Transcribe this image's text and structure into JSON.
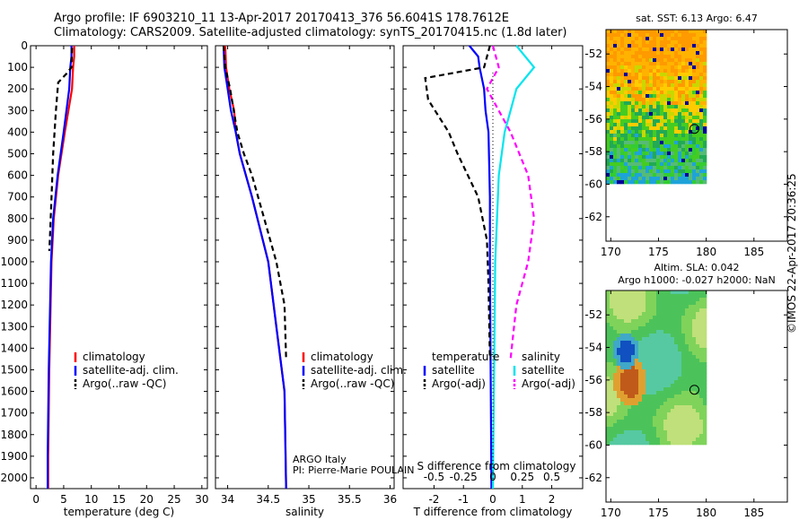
{
  "header": {
    "line1": "Argo profile: IF 6903210_11 13-Apr-2017 20170413_376 56.6041S 178.7612E",
    "line2": "Climatology: CARS2009. Satellite-adjusted climatology: synTS_20170415.nc (1.8d later)"
  },
  "credit": "©IMOS 22-Apr-2017 20:36:25",
  "colors": {
    "climatology": "#ff0000",
    "satellite": "#0000ff",
    "argo": "#000000",
    "cyan": "#00e5ee",
    "magenta": "#ff00ff"
  },
  "chart_data": [
    {
      "type": "line",
      "id": "temperature",
      "xlabel": "temperature (deg C)",
      "ylabel": "",
      "xlim": [
        -1,
        31
      ],
      "ylim": [
        2050,
        0
      ],
      "xticks": [
        0,
        5,
        10,
        15,
        20,
        25,
        30
      ],
      "yticks": [
        0,
        100,
        200,
        300,
        400,
        500,
        600,
        700,
        800,
        900,
        1000,
        1100,
        1200,
        1300,
        1400,
        1500,
        1600,
        1700,
        1800,
        1900,
        2000
      ],
      "legend": [
        "climatology",
        "satellite-adj. clim.",
        "Argo(..raw -QC)"
      ],
      "legend_placement": "center",
      "series": [
        {
          "name": "climatology",
          "color": "#ff0000",
          "dash": "none",
          "x": [
            6.9,
            6.9,
            6.7,
            6.5,
            5.2,
            4.0,
            3.2,
            2.8,
            2.4,
            2.2,
            2.2
          ],
          "y": [
            0,
            50,
            100,
            200,
            400,
            600,
            800,
            1000,
            1500,
            1900,
            2050
          ]
        },
        {
          "name": "satellite-adj. clim.",
          "color": "#0000ff",
          "dash": "none",
          "x": [
            6.4,
            6.4,
            6.2,
            6.0,
            5.0,
            3.9,
            3.1,
            2.7,
            2.3,
            2.1,
            2.1
          ],
          "y": [
            0,
            50,
            100,
            200,
            400,
            600,
            800,
            1000,
            1500,
            1900,
            2050
          ]
        },
        {
          "name": "Argo(..raw -QC)",
          "color": "#000000",
          "dash": "6,4",
          "x": [
            6.5,
            6.4,
            5.5,
            4.0,
            3.6,
            3.1,
            2.8,
            2.5,
            2.4
          ],
          "y": [
            10,
            100,
            130,
            170,
            300,
            500,
            700,
            900,
            950
          ]
        }
      ]
    },
    {
      "type": "line",
      "id": "salinity",
      "xlabel": "salinity",
      "xlim": [
        33.85,
        36.05
      ],
      "ylim": [
        2050,
        0
      ],
      "xticks": [
        34,
        34.5,
        35,
        35.5,
        36
      ],
      "xticklabels": [
        "34",
        "34.5",
        "35",
        "35.5",
        "36"
      ],
      "legend": [
        "climatology",
        "satellite-adj. clim.",
        "Argo(..raw -QC)"
      ],
      "legend_placement": "center-right",
      "annotations": [
        "ARGO Italy",
        "PI: Pierre-Marie POULAIN"
      ],
      "series": [
        {
          "name": "climatology",
          "color": "#ff0000",
          "dash": "none",
          "x": [
            33.97,
            33.98,
            34.02,
            34.08,
            34.1,
            34.15,
            34.3,
            34.5,
            34.6,
            34.7,
            34.72
          ],
          "y": [
            0,
            100,
            200,
            300,
            400,
            500,
            700,
            1000,
            1300,
            1600,
            2050
          ]
        },
        {
          "name": "satellite-adj. clim.",
          "color": "#0000ff",
          "dash": "none",
          "x": [
            33.95,
            33.96,
            34.0,
            34.04,
            34.1,
            34.15,
            34.3,
            34.5,
            34.6,
            34.7,
            34.72
          ],
          "y": [
            0,
            100,
            200,
            300,
            400,
            500,
            700,
            1000,
            1300,
            1600,
            2050
          ]
        },
        {
          "name": "Argo(..raw -QC)",
          "color": "#000000",
          "dash": "6,4",
          "x": [
            33.95,
            33.97,
            34.03,
            34.12,
            34.2,
            34.3,
            34.45,
            34.6,
            34.7,
            34.72
          ],
          "y": [
            0,
            100,
            200,
            400,
            500,
            600,
            800,
            1000,
            1200,
            1450
          ]
        }
      ]
    },
    {
      "type": "line",
      "id": "difference",
      "xlabel": "T difference from climatology",
      "xlabel_top": "S difference from climatology",
      "xticks_bottom": [
        -2,
        -1,
        0,
        1,
        2
      ],
      "xticklabels_bottom": [
        "-2",
        "-1",
        "0",
        "1",
        "2"
      ],
      "xticks_top": [
        -0.5,
        -0.25,
        0,
        0.25,
        0.5
      ],
      "xticklabels_top": [
        "-0.5",
        "-0.25",
        "0",
        "0.25",
        "0.5"
      ],
      "xlim": [
        -3.05,
        3.05
      ],
      "ylim": [
        2050,
        0
      ],
      "legend_left": {
        "title": "temperature",
        "items": [
          "satellite",
          "Argo(-adj)"
        ]
      },
      "legend_right": {
        "title": "salinity",
        "items": [
          "satellite",
          "Argo(-adj)"
        ]
      },
      "series": [
        {
          "name": "satellite",
          "group": "temperature",
          "color": "#0000ff",
          "dash": "none",
          "x": [
            -0.8,
            -0.5,
            -0.45,
            -0.3,
            -0.25,
            -0.15,
            -0.1,
            -0.1,
            -0.05
          ],
          "y": [
            0,
            50,
            100,
            200,
            300,
            400,
            700,
            1000,
            2050
          ]
        },
        {
          "name": "Argo(-adj)",
          "group": "temperature",
          "color": "#000000",
          "dash": "6,4",
          "x": [
            -0.1,
            -0.3,
            -2.3,
            -2.2,
            -1.5,
            -1.2,
            -0.5,
            -0.2,
            -0.15,
            -0.1
          ],
          "y": [
            0,
            100,
            150,
            250,
            400,
            500,
            700,
            900,
            1100,
            1450
          ]
        },
        {
          "name": "satellite",
          "group": "salinity",
          "color": "#00e5ee",
          "dash": "none",
          "x": [
            0.2,
            0.35,
            0.2,
            0.15,
            0.1,
            0.05,
            0.02,
            0.0
          ],
          "y": [
            0,
            100,
            200,
            300,
            400,
            600,
            1000,
            2050
          ]
        },
        {
          "name": "Argo(-adj)",
          "group": "salinity",
          "color": "#ff00ff",
          "dash": "6,4",
          "x": [
            0.0,
            0.05,
            -0.05,
            0.15,
            0.3,
            0.35,
            0.3,
            0.2,
            0.15
          ],
          "y": [
            0,
            100,
            200,
            400,
            600,
            800,
            1000,
            1200,
            1450
          ]
        }
      ]
    },
    {
      "type": "heatmap",
      "id": "sst-map",
      "title": "sat. SST: 6.13 Argo: 6.47",
      "xticks": [
        170,
        175,
        180,
        185
      ],
      "yticks": [
        -52,
        -54,
        -56,
        -58,
        -60,
        -62
      ],
      "xlim": [
        169.5,
        188.5
      ],
      "ylim": [
        -63.5,
        -50.5
      ],
      "data_extent": {
        "lon": [
          169.5,
          180
        ],
        "lat": [
          -60,
          -50.5
        ]
      },
      "marker": {
        "lon": 178.76,
        "lat": -56.6
      }
    },
    {
      "type": "heatmap",
      "id": "sla-map",
      "title": "Altim. SLA: 0.042",
      "subtitle": "Argo h1000: -0.027 h2000: NaN",
      "xticks": [
        170,
        175,
        180,
        185
      ],
      "yticks": [
        -52,
        -54,
        -56,
        -58,
        -60,
        -62
      ],
      "xlim": [
        169.5,
        188.5
      ],
      "ylim": [
        -63.5,
        -50.5
      ],
      "data_extent": {
        "lon": [
          169.5,
          180
        ],
        "lat": [
          -60,
          -50.5
        ]
      },
      "marker": {
        "lon": 178.76,
        "lat": -56.6
      }
    }
  ]
}
